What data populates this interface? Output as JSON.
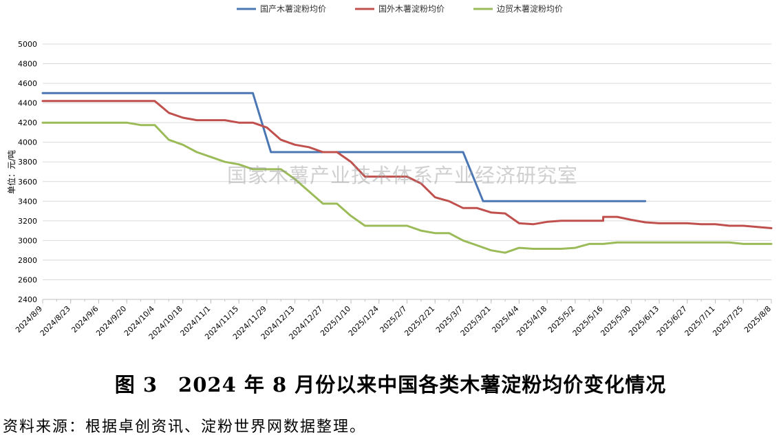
{
  "chart_data": {
    "type": "line",
    "ylabel": "单位：元/吨",
    "ylim": [
      2400,
      5000
    ],
    "yticks": [
      2400,
      2600,
      2800,
      3000,
      3200,
      3400,
      3600,
      3800,
      4000,
      4200,
      4400,
      4600,
      4800,
      5000
    ],
    "x_tick_labels": [
      "2024/8/9",
      "2024/8/23",
      "2024/9/6",
      "2024/9/20",
      "2024/10/4",
      "2024/10/18",
      "2024/11/1",
      "2024/11/15",
      "2024/11/29",
      "2024/12/13",
      "2024/12/27",
      "2025/1/10",
      "2025/1/24",
      "2025/2/7",
      "2025/2/21",
      "2025/3/7",
      "2025/3/21",
      "2025/4/4",
      "2025/4/18",
      "2025/5/2",
      "2025/5/16",
      "2025/5/30",
      "2025/6/13",
      "2025/6/27",
      "2025/7/11",
      "2025/7/25",
      "2025/8/8"
    ],
    "grid": "horizontal",
    "legend_position": "top-center",
    "series": [
      {
        "name": "国产木薯淀粉均价",
        "color": "#4a77b4",
        "points": [
          [
            "2024/8/9",
            4500
          ],
          [
            "2024/11/22",
            4500
          ],
          [
            "2024/12/1",
            3900
          ],
          [
            "2025/3/7",
            3900
          ],
          [
            "2025/3/17",
            3400
          ],
          [
            "2025/6/6",
            3400
          ]
        ]
      },
      {
        "name": "国外木薯淀粉均价",
        "color": "#c0504d",
        "points": [
          [
            "2024/8/9",
            4420
          ],
          [
            "2024/10/4",
            4420
          ],
          [
            "2024/10/11",
            4300
          ],
          [
            "2024/10/18",
            4250
          ],
          [
            "2024/10/25",
            4225
          ],
          [
            "2024/11/8",
            4225
          ],
          [
            "2024/11/15",
            4200
          ],
          [
            "2024/11/22",
            4200
          ],
          [
            "2024/11/29",
            4150
          ],
          [
            "2024/12/6",
            4025
          ],
          [
            "2024/12/13",
            3975
          ],
          [
            "2024/12/20",
            3950
          ],
          [
            "2024/12/27",
            3900
          ],
          [
            "2025/1/3",
            3900
          ],
          [
            "2025/1/10",
            3800
          ],
          [
            "2025/1/17",
            3650
          ],
          [
            "2025/2/7",
            3650
          ],
          [
            "2025/2/14",
            3580
          ],
          [
            "2025/2/21",
            3440
          ],
          [
            "2025/2/28",
            3400
          ],
          [
            "2025/3/7",
            3330
          ],
          [
            "2025/3/14",
            3330
          ],
          [
            "2025/3/21",
            3285
          ],
          [
            "2025/3/28",
            3275
          ],
          [
            "2025/4/4",
            3175
          ],
          [
            "2025/4/11",
            3165
          ],
          [
            "2025/4/18",
            3190
          ],
          [
            "2025/4/25",
            3200
          ],
          [
            "2025/5/16",
            3200
          ],
          [
            "2025/5/16",
            3240
          ],
          [
            "2025/5/23",
            3240
          ],
          [
            "2025/5/30",
            3210
          ],
          [
            "2025/6/6",
            3185
          ],
          [
            "2025/6/13",
            3175
          ],
          [
            "2025/6/27",
            3175
          ],
          [
            "2025/7/4",
            3165
          ],
          [
            "2025/7/11",
            3165
          ],
          [
            "2025/7/18",
            3150
          ],
          [
            "2025/7/25",
            3150
          ],
          [
            "2025/8/8",
            3125
          ]
        ]
      },
      {
        "name": "边贸木薯淀粉均价",
        "color": "#9bbb59",
        "points": [
          [
            "2024/8/9",
            4200
          ],
          [
            "2024/9/20",
            4200
          ],
          [
            "2024/9/27",
            4175
          ],
          [
            "2024/10/4",
            4175
          ],
          [
            "2024/10/11",
            4025
          ],
          [
            "2024/10/18",
            3975
          ],
          [
            "2024/10/25",
            3900
          ],
          [
            "2024/11/1",
            3850
          ],
          [
            "2024/11/8",
            3800
          ],
          [
            "2024/11/15",
            3775
          ],
          [
            "2024/11/22",
            3725
          ],
          [
            "2024/12/6",
            3725
          ],
          [
            "2024/12/13",
            3625
          ],
          [
            "2024/12/20",
            3500
          ],
          [
            "2024/12/27",
            3375
          ],
          [
            "2025/1/3",
            3375
          ],
          [
            "2025/1/10",
            3250
          ],
          [
            "2025/1/17",
            3150
          ],
          [
            "2025/2/7",
            3150
          ],
          [
            "2025/2/14",
            3100
          ],
          [
            "2025/2/21",
            3075
          ],
          [
            "2025/2/28",
            3075
          ],
          [
            "2025/3/7",
            3000
          ],
          [
            "2025/3/14",
            2950
          ],
          [
            "2025/3/21",
            2900
          ],
          [
            "2025/3/28",
            2875
          ],
          [
            "2025/4/4",
            2925
          ],
          [
            "2025/4/11",
            2915
          ],
          [
            "2025/4/25",
            2915
          ],
          [
            "2025/5/2",
            2925
          ],
          [
            "2025/5/9",
            2965
          ],
          [
            "2025/5/16",
            2965
          ],
          [
            "2025/5/23",
            2980
          ],
          [
            "2025/7/18",
            2980
          ],
          [
            "2025/7/25",
            2965
          ],
          [
            "2025/8/8",
            2965
          ]
        ]
      }
    ]
  },
  "watermark": "国家木薯产业技术体系产业经济研究室",
  "caption": "图 3　2024 年 8 月份以来中国各类木薯淀粉均价变化情况",
  "source": "资料来源：根据卓创资讯、淀粉世界网数据整理。"
}
